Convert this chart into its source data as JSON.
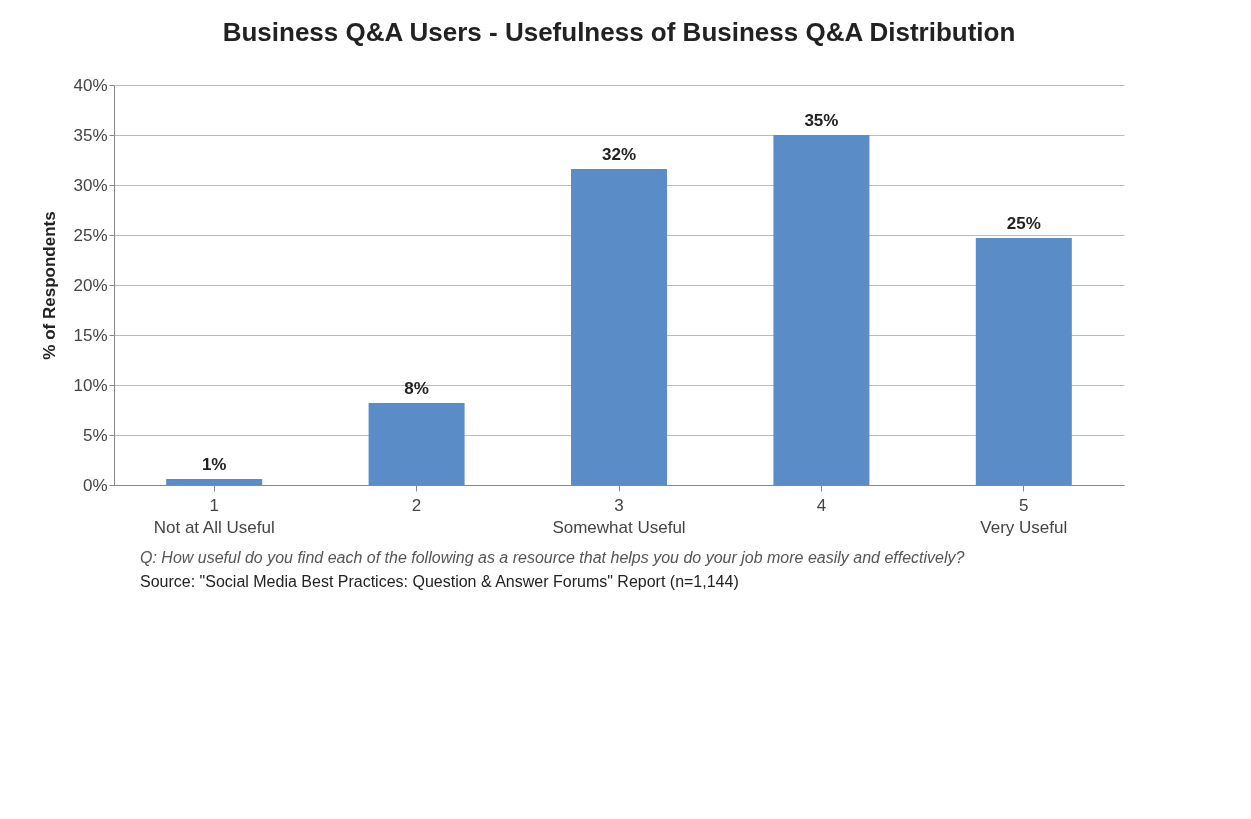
{
  "chart_data": {
    "type": "bar",
    "title": "Business Q&A Users - Usefulness  of Business Q&A Distribution",
    "ylabel": "% of Respondents",
    "categories": [
      "1\nNot at All Useful",
      "2",
      "3\nSomewhat Useful",
      "4",
      "5\nVery Useful"
    ],
    "values": [
      0.6,
      8.2,
      31.6,
      35,
      24.7
    ],
    "value_labels": [
      "1%",
      "8%",
      "32%",
      "35%",
      "25%"
    ],
    "color": "#5a8dc8",
    "ylim": [
      0,
      40
    ],
    "yticks": [
      {
        "value": 0,
        "label": "0%"
      },
      {
        "value": 5,
        "label": "5%"
      },
      {
        "value": 10,
        "label": "10%"
      },
      {
        "value": 15,
        "label": "15%"
      },
      {
        "value": 20,
        "label": "20%"
      },
      {
        "value": 25,
        "label": "25%"
      },
      {
        "value": 30,
        "label": "30%"
      },
      {
        "value": 35,
        "label": "35%"
      },
      {
        "value": 40,
        "label": "40%"
      }
    ],
    "grid": "y",
    "annotations": [
      "Q: How useful do you find each of the following as a resource that helps you do your job more easily and effectively?",
      "Source: \"Social Media Best Practices: Question & Answer Forums\" Report (n=1,144)"
    ]
  }
}
